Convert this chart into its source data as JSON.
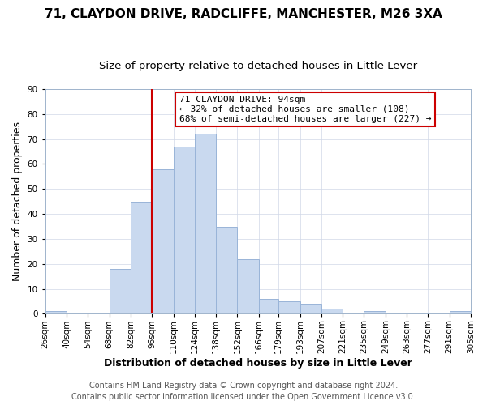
{
  "title": "71, CLAYDON DRIVE, RADCLIFFE, MANCHESTER, M26 3XA",
  "subtitle": "Size of property relative to detached houses in Little Lever",
  "xlabel": "Distribution of detached houses by size in Little Lever",
  "ylabel": "Number of detached properties",
  "footer_line1": "Contains HM Land Registry data © Crown copyright and database right 2024.",
  "footer_line2": "Contains public sector information licensed under the Open Government Licence v3.0.",
  "annotation_title": "71 CLAYDON DRIVE: 94sqm",
  "annotation_line1": "← 32% of detached houses are smaller (108)",
  "annotation_line2": "68% of semi-detached houses are larger (227) →",
  "vertical_line_x": 96,
  "bin_edges": [
    26,
    40,
    54,
    68,
    82,
    96,
    110,
    124,
    138,
    152,
    166,
    179,
    193,
    207,
    221,
    235,
    249,
    263,
    277,
    291,
    305
  ],
  "bin_counts": [
    1,
    0,
    0,
    18,
    45,
    58,
    67,
    72,
    35,
    22,
    6,
    5,
    4,
    2,
    0,
    1,
    0,
    0,
    0,
    1
  ],
  "bar_color": "#c9d9ef",
  "bar_edge_color": "#99b4d8",
  "vline_color": "#cc0000",
  "annotation_box_edge": "#cc0000",
  "annotation_box_face": "#ffffff",
  "grid_color": "#d0d8e8",
  "background_color": "#ffffff",
  "ylim": [
    0,
    90
  ],
  "tick_labels": [
    "26sqm",
    "40sqm",
    "54sqm",
    "68sqm",
    "82sqm",
    "96sqm",
    "110sqm",
    "124sqm",
    "138sqm",
    "152sqm",
    "166sqm",
    "179sqm",
    "193sqm",
    "207sqm",
    "221sqm",
    "235sqm",
    "249sqm",
    "263sqm",
    "277sqm",
    "291sqm",
    "305sqm"
  ],
  "title_fontsize": 11,
  "subtitle_fontsize": 9.5,
  "axis_label_fontsize": 9,
  "tick_fontsize": 7.5,
  "footer_fontsize": 7
}
